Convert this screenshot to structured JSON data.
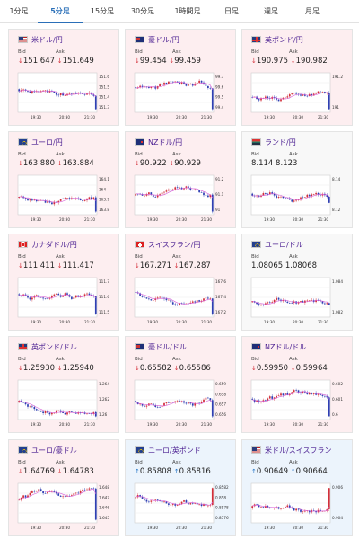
{
  "tabs": [
    "1分足",
    "5分足",
    "15分足",
    "30分足",
    "1時間足",
    "日足",
    "週足",
    "月足"
  ],
  "active_tab": 1,
  "colors": {
    "down_bg": "#fdeef0",
    "up_bg": "#ecf4fc",
    "pair_text": "#4a1e91",
    "down_arrow": "#d4313b",
    "up_arrow": "#2877c9",
    "active_tab": "#2a6fb8"
  },
  "labels": {
    "bid": "Bid",
    "ask": "Ask"
  },
  "cards": [
    {
      "pair": "米ドル/円",
      "flag": "us",
      "dir": "down",
      "bid": "151.647",
      "ask": "151.649",
      "yticks": [
        "151.6",
        "151.5",
        "151.4",
        "151.3"
      ],
      "xticks": [
        "19:30",
        "20:30",
        "21:30"
      ]
    },
    {
      "pair": "豪ドル/円",
      "flag": "au",
      "dir": "down",
      "bid": "99.454",
      "ask": "99.459",
      "yticks": [
        "99.7",
        "99.6",
        "99.5",
        "99.4"
      ],
      "xticks": [
        "19:30",
        "20:30",
        "21:30"
      ]
    },
    {
      "pair": "英ポンド/円",
      "flag": "gb",
      "dir": "down",
      "bid": "190.975",
      "ask": "190.982",
      "yticks": [
        "191.2",
        "191"
      ],
      "xticks": [
        "19:30",
        "20:30",
        "21:30"
      ]
    },
    {
      "pair": "ユーロ/円",
      "flag": "eu",
      "dir": "down",
      "bid": "163.880",
      "ask": "163.884",
      "yticks": [
        "164.1",
        "164",
        "163.9",
        "163.8"
      ],
      "xticks": [
        "19:30",
        "20:30",
        "21:30"
      ]
    },
    {
      "pair": "NZドル/円",
      "flag": "nz",
      "dir": "down",
      "bid": "90.922",
      "ask": "90.929",
      "yticks": [
        "91.2",
        "91.1",
        "91"
      ],
      "xticks": [
        "19:30",
        "20:30",
        "21:30"
      ]
    },
    {
      "pair": "ランド/円",
      "flag": "za",
      "dir": "neutral",
      "bid": "8.114",
      "ask": "8.123",
      "yticks": [
        "8.14",
        "8.12"
      ],
      "xticks": [
        "19:30",
        "20:30",
        "21:30"
      ]
    },
    {
      "pair": "カナダドル/円",
      "flag": "ca",
      "dir": "down",
      "bid": "111.411",
      "ask": "111.417",
      "yticks": [
        "111.7",
        "111.6",
        "111.5"
      ],
      "xticks": [
        "19:30",
        "20:30",
        "21:30"
      ]
    },
    {
      "pair": "スイスフラン/円",
      "flag": "ch",
      "dir": "down",
      "bid": "167.271",
      "ask": "167.287",
      "yticks": [
        "167.6",
        "167.4",
        "167.2"
      ],
      "xticks": [
        "19:30",
        "20:30",
        "21:30"
      ]
    },
    {
      "pair": "ユーロ/ドル",
      "flag": "eu",
      "dir": "neutral",
      "bid": "1.08065",
      "ask": "1.08068",
      "yticks": [
        "1.084",
        "1.082"
      ],
      "xticks": [
        "19:30",
        "20:30",
        "21:30"
      ]
    },
    {
      "pair": "英ポンド/ドル",
      "flag": "gb",
      "dir": "down",
      "bid": "1.25930",
      "ask": "1.25940",
      "yticks": [
        "1.264",
        "1.262",
        "1.26"
      ],
      "xticks": [
        "19:30",
        "20:30",
        "21:30"
      ]
    },
    {
      "pair": "豪ドル/ドル",
      "flag": "au",
      "dir": "down",
      "bid": "0.65582",
      "ask": "0.65586",
      "yticks": [
        "0.659",
        "0.658",
        "0.657",
        "0.656"
      ],
      "xticks": [
        "19:30",
        "20:30",
        "21:30"
      ]
    },
    {
      "pair": "NZドル/ドル",
      "flag": "nz",
      "dir": "down",
      "bid": "0.59950",
      "ask": "0.59964",
      "yticks": [
        "0.602",
        "0.601",
        "0.6"
      ],
      "xticks": [
        "19:30",
        "20:30",
        "21:30"
      ]
    },
    {
      "pair": "ユーロ/豪ドル",
      "flag": "eu",
      "dir": "down",
      "bid": "1.64769",
      "ask": "1.64783",
      "yticks": [
        "1.648",
        "1.647",
        "1.646",
        "1.645"
      ],
      "xticks": [
        "19:30",
        "20:30",
        "21:30"
      ]
    },
    {
      "pair": "ユーロ/英ポンド",
      "flag": "eu",
      "dir": "up",
      "bid": "0.85808",
      "ask": "0.85816",
      "yticks": [
        "0.8582",
        "0.858",
        "0.8578",
        "0.8576"
      ],
      "xticks": [
        "19:30",
        "20:30",
        "21:30"
      ]
    },
    {
      "pair": "米ドル/スイスフラン",
      "flag": "us",
      "dir": "up",
      "bid": "0.90649",
      "ask": "0.90664",
      "yticks": [
        "0.906",
        "0.904"
      ],
      "xticks": [
        "19:30",
        "20:30",
        "21:30"
      ]
    }
  ]
}
